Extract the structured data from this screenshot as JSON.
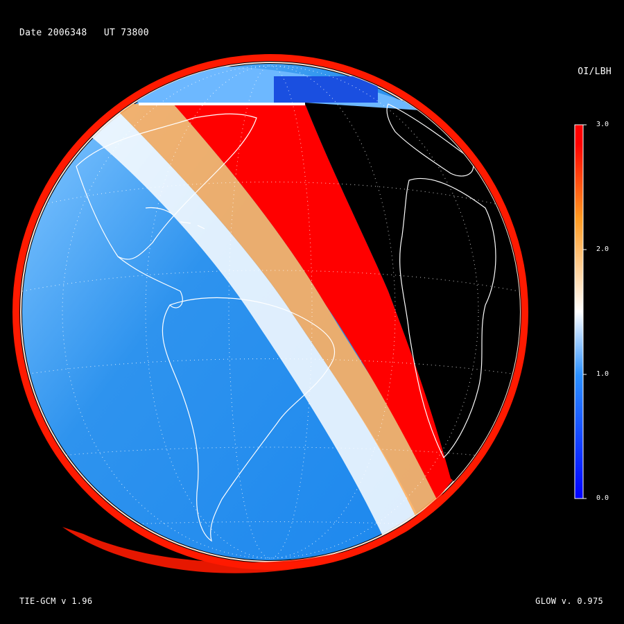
{
  "header": {
    "date_label": "Date 2006348",
    "ut_label": "UT 73800"
  },
  "colorbar": {
    "title": "OI/LBH",
    "ticks": [
      "3.0",
      "2.0",
      "1.0",
      "0.0"
    ],
    "range": [
      0.0,
      3.0
    ],
    "colors": [
      "#0000ff",
      "#1e88ff",
      "#ffffff",
      "#ffa020",
      "#ff0000"
    ]
  },
  "footer": {
    "model_left": "TIE-GCM v 1.96",
    "model_right": "GLOW v. 0.975"
  },
  "map": {
    "projection": "orthographic",
    "dayside_color": "#1e8cf0",
    "terminator_color": "#ff0000",
    "nightside_color": "#000000",
    "coastline_color": "#ffffff"
  }
}
